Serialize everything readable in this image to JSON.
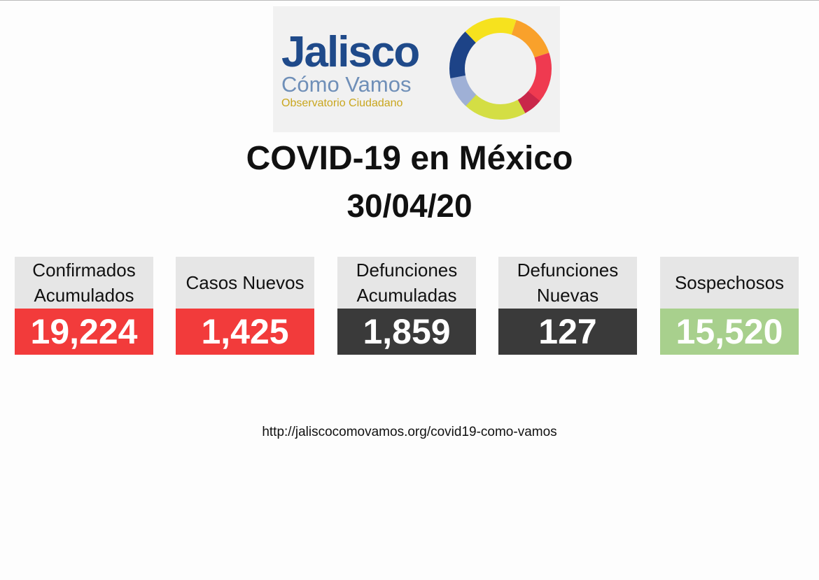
{
  "logo": {
    "name": "Jalisco",
    "tagline": "Cómo Vamos",
    "subtitle": "Observatorio Ciudadano"
  },
  "title": "COVID-19 en México",
  "date": "30/04/20",
  "cards": [
    {
      "label": "Confirmados Acumulados",
      "value": "19,224",
      "color": "#f23b3b"
    },
    {
      "label": "Casos Nuevos",
      "value": "1,425",
      "color": "#f23b3b"
    },
    {
      "label": "Defunciones Acumuladas",
      "value": "1,859",
      "color": "#3a3a3a"
    },
    {
      "label": "Defunciones Nuevas",
      "value": "127",
      "color": "#3a3a3a"
    },
    {
      "label": "Sospechosos",
      "value": "15,520",
      "color": "#a8d08d"
    }
  ],
  "url": "http://jaliscocomovamos.org/covid19-como-vamos"
}
